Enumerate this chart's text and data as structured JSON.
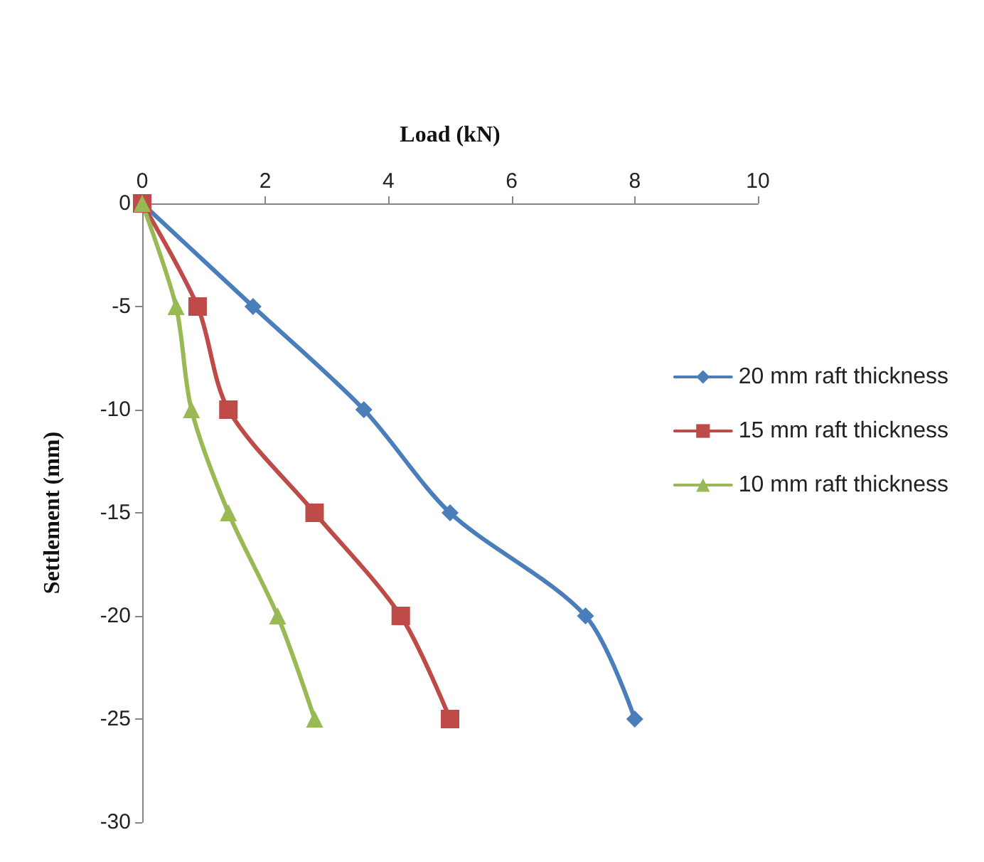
{
  "chart_data": {
    "type": "line",
    "xlabel": "Load (kN)",
    "ylabel": "Settlement (mm)",
    "xlim": [
      0,
      10
    ],
    "xticks": [
      0,
      2,
      4,
      6,
      8,
      10
    ],
    "ylim": [
      -30,
      0
    ],
    "yticks": [
      -30,
      -25,
      -20,
      -15,
      -10,
      -5,
      0
    ],
    "grid": false,
    "legend": "right",
    "series": [
      {
        "name": "20 mm raft thickness",
        "color": "#4a7ebb",
        "marker": "diamond",
        "x": [
          0,
          1.8,
          3.6,
          5,
          7.2,
          8
        ],
        "values": [
          0,
          -5,
          -10,
          -15,
          -20,
          -25
        ]
      },
      {
        "name": "15 mm raft thickness",
        "color": "#be4b48",
        "marker": "square",
        "x": [
          0,
          0.9,
          1.4,
          2.8,
          4.2,
          5
        ],
        "values": [
          0,
          -5,
          -10,
          -15,
          -20,
          -25
        ]
      },
      {
        "name": "10 mm raft thickness",
        "color": "#98b954",
        "marker": "triangle",
        "x": [
          0,
          0.55,
          0.8,
          1.4,
          2.2,
          2.8
        ],
        "values": [
          0,
          -5,
          -10,
          -15,
          -20,
          -25
        ]
      }
    ]
  }
}
